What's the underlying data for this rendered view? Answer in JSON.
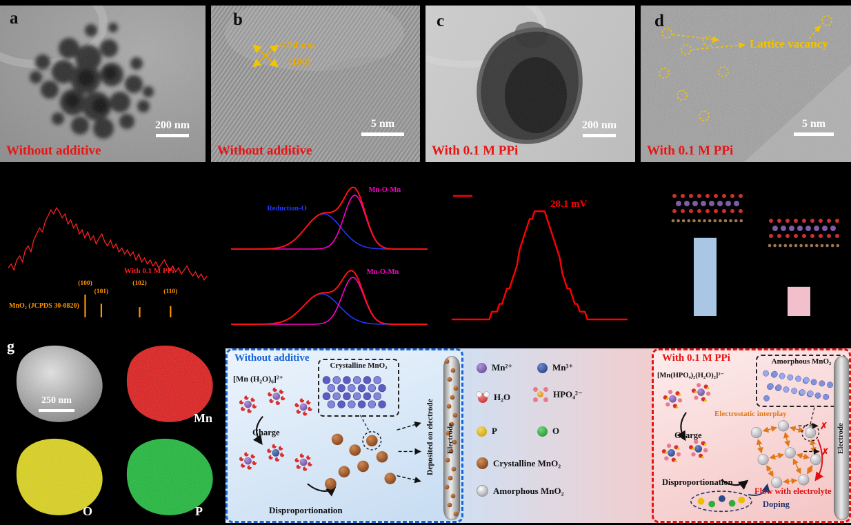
{
  "colors": {
    "caption_red": "#e81414",
    "annotation_gold": "#eaa800",
    "vacancy_yellow": "#f2c400",
    "title_blue": "#1863d6",
    "title_red": "#e81212",
    "electrostatic_orange": "#e07818",
    "flow_red": "#e01010",
    "doping_navy": "#1c3470"
  },
  "panels": {
    "a": {
      "letter": "a",
      "caption": "Without additive",
      "scale_bar": "200 nm"
    },
    "b": {
      "letter": "b",
      "caption": "Without additive",
      "scale_bar": "5 nm",
      "lattice_spacing": "0.24 nm",
      "lattice_plane": "(100)"
    },
    "c": {
      "letter": "c",
      "caption": "With 0.1 M PPi",
      "scale_bar": "200 nm"
    },
    "d": {
      "letter": "d",
      "caption": "With 0.1 M PPi",
      "scale_bar": "5 nm",
      "vacancy_label": "Lattice vacancy"
    },
    "g": {
      "letter": "g",
      "scale_bar": "250 nm",
      "maps": [
        {
          "element": "Mn",
          "color": "#e01414"
        },
        {
          "element": "O",
          "color": "#ddd414"
        },
        {
          "element": "P",
          "color": "#17b834"
        }
      ]
    }
  },
  "chart_data": [
    {
      "id": "xrd",
      "type": "line",
      "series_label": "With 0.1 M PPi",
      "series_color": "#ff2020",
      "x_range": [
        10,
        80
      ],
      "x": [
        10,
        11,
        12,
        13,
        14,
        15,
        16,
        17,
        18,
        19,
        20,
        21,
        22,
        23,
        24,
        25,
        26,
        27,
        28,
        29,
        30,
        31,
        32,
        33,
        34,
        35,
        36,
        37,
        38,
        39,
        40,
        41,
        42,
        43,
        44,
        45,
        46,
        47,
        48,
        49,
        50,
        51,
        52,
        53,
        54,
        55,
        56,
        57,
        58,
        59,
        60,
        61,
        62,
        63,
        64,
        65,
        66,
        67,
        68,
        69,
        70,
        71,
        72,
        73,
        74,
        75,
        76,
        77,
        78,
        79,
        80
      ],
      "y": [
        24,
        26,
        23,
        28,
        30,
        27,
        33,
        35,
        32,
        38,
        41,
        44,
        42,
        47,
        50,
        53,
        51,
        54,
        52,
        49,
        51,
        46,
        48,
        44,
        46,
        41,
        43,
        39,
        42,
        38,
        40,
        36,
        39,
        41,
        37,
        35,
        38,
        34,
        36,
        32,
        34,
        31,
        33,
        30,
        32,
        28,
        31,
        27,
        29,
        26,
        28,
        25,
        27,
        24,
        26,
        28,
        25,
        23,
        25,
        22,
        24,
        21,
        23,
        25,
        22,
        20,
        22,
        19,
        21,
        18,
        20
      ],
      "reference": {
        "label": "MnO₂ (JCPDS 30-0820)",
        "color": "#ff9400",
        "peaks": [
          {
            "two_theta": 37.1,
            "hkl": "(100)",
            "rel_intensity": 100
          },
          {
            "two_theta": 42.8,
            "hkl": "(101)",
            "rel_intensity": 60
          },
          {
            "two_theta": 56.3,
            "hkl": "(102)",
            "rel_intensity": 45
          },
          {
            "two_theta": 67.2,
            "hkl": "(110)",
            "rel_intensity": 50
          }
        ]
      }
    },
    {
      "id": "xps-o1s",
      "type": "line",
      "panels": [
        {
          "envelope_color": "#ff1212",
          "components": [
            {
              "label": "Reduction-O",
              "color": "#2238ff",
              "center": 47,
              "sigma": 9,
              "amplitude": 60,
              "label_dx": -24,
              "anchor": "end"
            },
            {
              "label": "Mn-O-Mn",
              "color": "#ff00cc",
              "center": 63,
              "sigma": 5.5,
              "amplitude": 92,
              "label_dx": 20,
              "anchor": "start"
            }
          ]
        },
        {
          "envelope_color": "#ff1212",
          "components": [
            {
              "label": "Reduction-O",
              "color": "#2238ff",
              "center": 46,
              "sigma": 9,
              "amplitude": 52,
              "show_label": false
            },
            {
              "label": "Mn-O-Mn",
              "color": "#ff00cc",
              "center": 62,
              "sigma": 5.5,
              "amplitude": 80,
              "label_dx": 20,
              "anchor": "start"
            }
          ]
        }
      ]
    },
    {
      "id": "zeta-potential",
      "type": "line",
      "annotation": "28.1 mV",
      "color": "#ff0000",
      "peak": {
        "center": 28.1,
        "sigma": 30,
        "amplitude": 100
      },
      "x_range": [
        -110,
        170
      ]
    },
    {
      "id": "model-comparison",
      "type": "bar",
      "values_relative": [
        0.51,
        0.19
      ],
      "colors": [
        "#a9c6e4",
        "#f2c0cc"
      ]
    }
  ],
  "schematic": {
    "left": {
      "title": "Without additive",
      "precursor": "[Mn (H₂O)₆]²⁺",
      "crystalline_label": "Crystalline MnO₂",
      "charge": "Charge",
      "disproportionation": "Disproportionation",
      "deposited": "Deposited on electrode",
      "electrode": "Electrode"
    },
    "legend": [
      {
        "label": "Mn²⁺"
      },
      {
        "label": "Mn³⁺"
      },
      {
        "label": "H₂O"
      },
      {
        "label": "HPO₄²⁻"
      },
      {
        "label": "P"
      },
      {
        "label": "O"
      },
      {
        "label": "Crystalline MnO₂"
      },
      {
        "label": "Amorphous MnO₂"
      }
    ],
    "right": {
      "title": "With 0.1 M PPi",
      "precursor": "[Mn(HPO₄)₂(H₂O)₂]²⁻",
      "amorphous_label": "Amorphous MnO₂",
      "electrostatic": "Electrostatic interplay",
      "charge": "Charge",
      "disproportionation": "Disproportionation",
      "doping": "Doping",
      "flow": "Flow with electrolyte",
      "electrode": "Electrode"
    }
  }
}
